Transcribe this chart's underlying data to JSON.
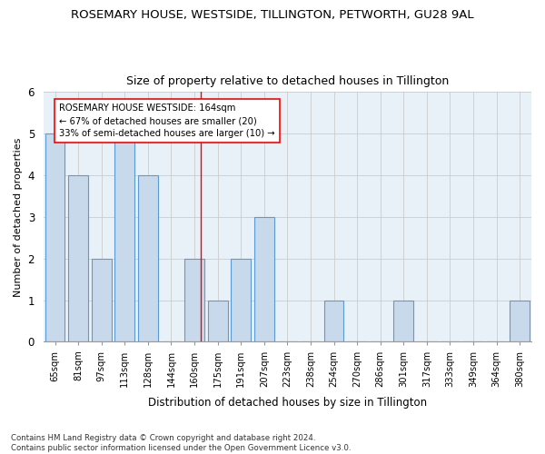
{
  "title": "ROSEMARY HOUSE, WESTSIDE, TILLINGTON, PETWORTH, GU28 9AL",
  "subtitle": "Size of property relative to detached houses in Tillington",
  "xlabel": "Distribution of detached houses by size in Tillington",
  "ylabel": "Number of detached properties",
  "categories": [
    "65sqm",
    "81sqm",
    "97sqm",
    "113sqm",
    "128sqm",
    "144sqm",
    "160sqm",
    "175sqm",
    "191sqm",
    "207sqm",
    "223sqm",
    "238sqm",
    "254sqm",
    "270sqm",
    "286sqm",
    "301sqm",
    "317sqm",
    "333sqm",
    "349sqm",
    "364sqm",
    "380sqm"
  ],
  "values": [
    5,
    4,
    2,
    5,
    4,
    0,
    2,
    1,
    2,
    3,
    0,
    0,
    1,
    0,
    0,
    1,
    0,
    0,
    0,
    0,
    1
  ],
  "bar_color": "#c8d9eb",
  "bar_edge_color": "#5b9bd5",
  "ylim": [
    0,
    6
  ],
  "yticks": [
    0,
    1,
    2,
    3,
    4,
    5,
    6
  ],
  "red_line_x": 6.27,
  "annotation_line1": "ROSEMARY HOUSE WESTSIDE: 164sqm",
  "annotation_line2": "← 67% of detached houses are smaller (20)",
  "annotation_line3": "33% of semi-detached houses are larger (10) →",
  "footnote": "Contains HM Land Registry data © Crown copyright and database right 2024.\nContains public sector information licensed under the Open Government Licence v3.0.",
  "background_color": "#ffffff",
  "grid_color": "#cccccc",
  "axes_bg_color": "#e8f0f8"
}
